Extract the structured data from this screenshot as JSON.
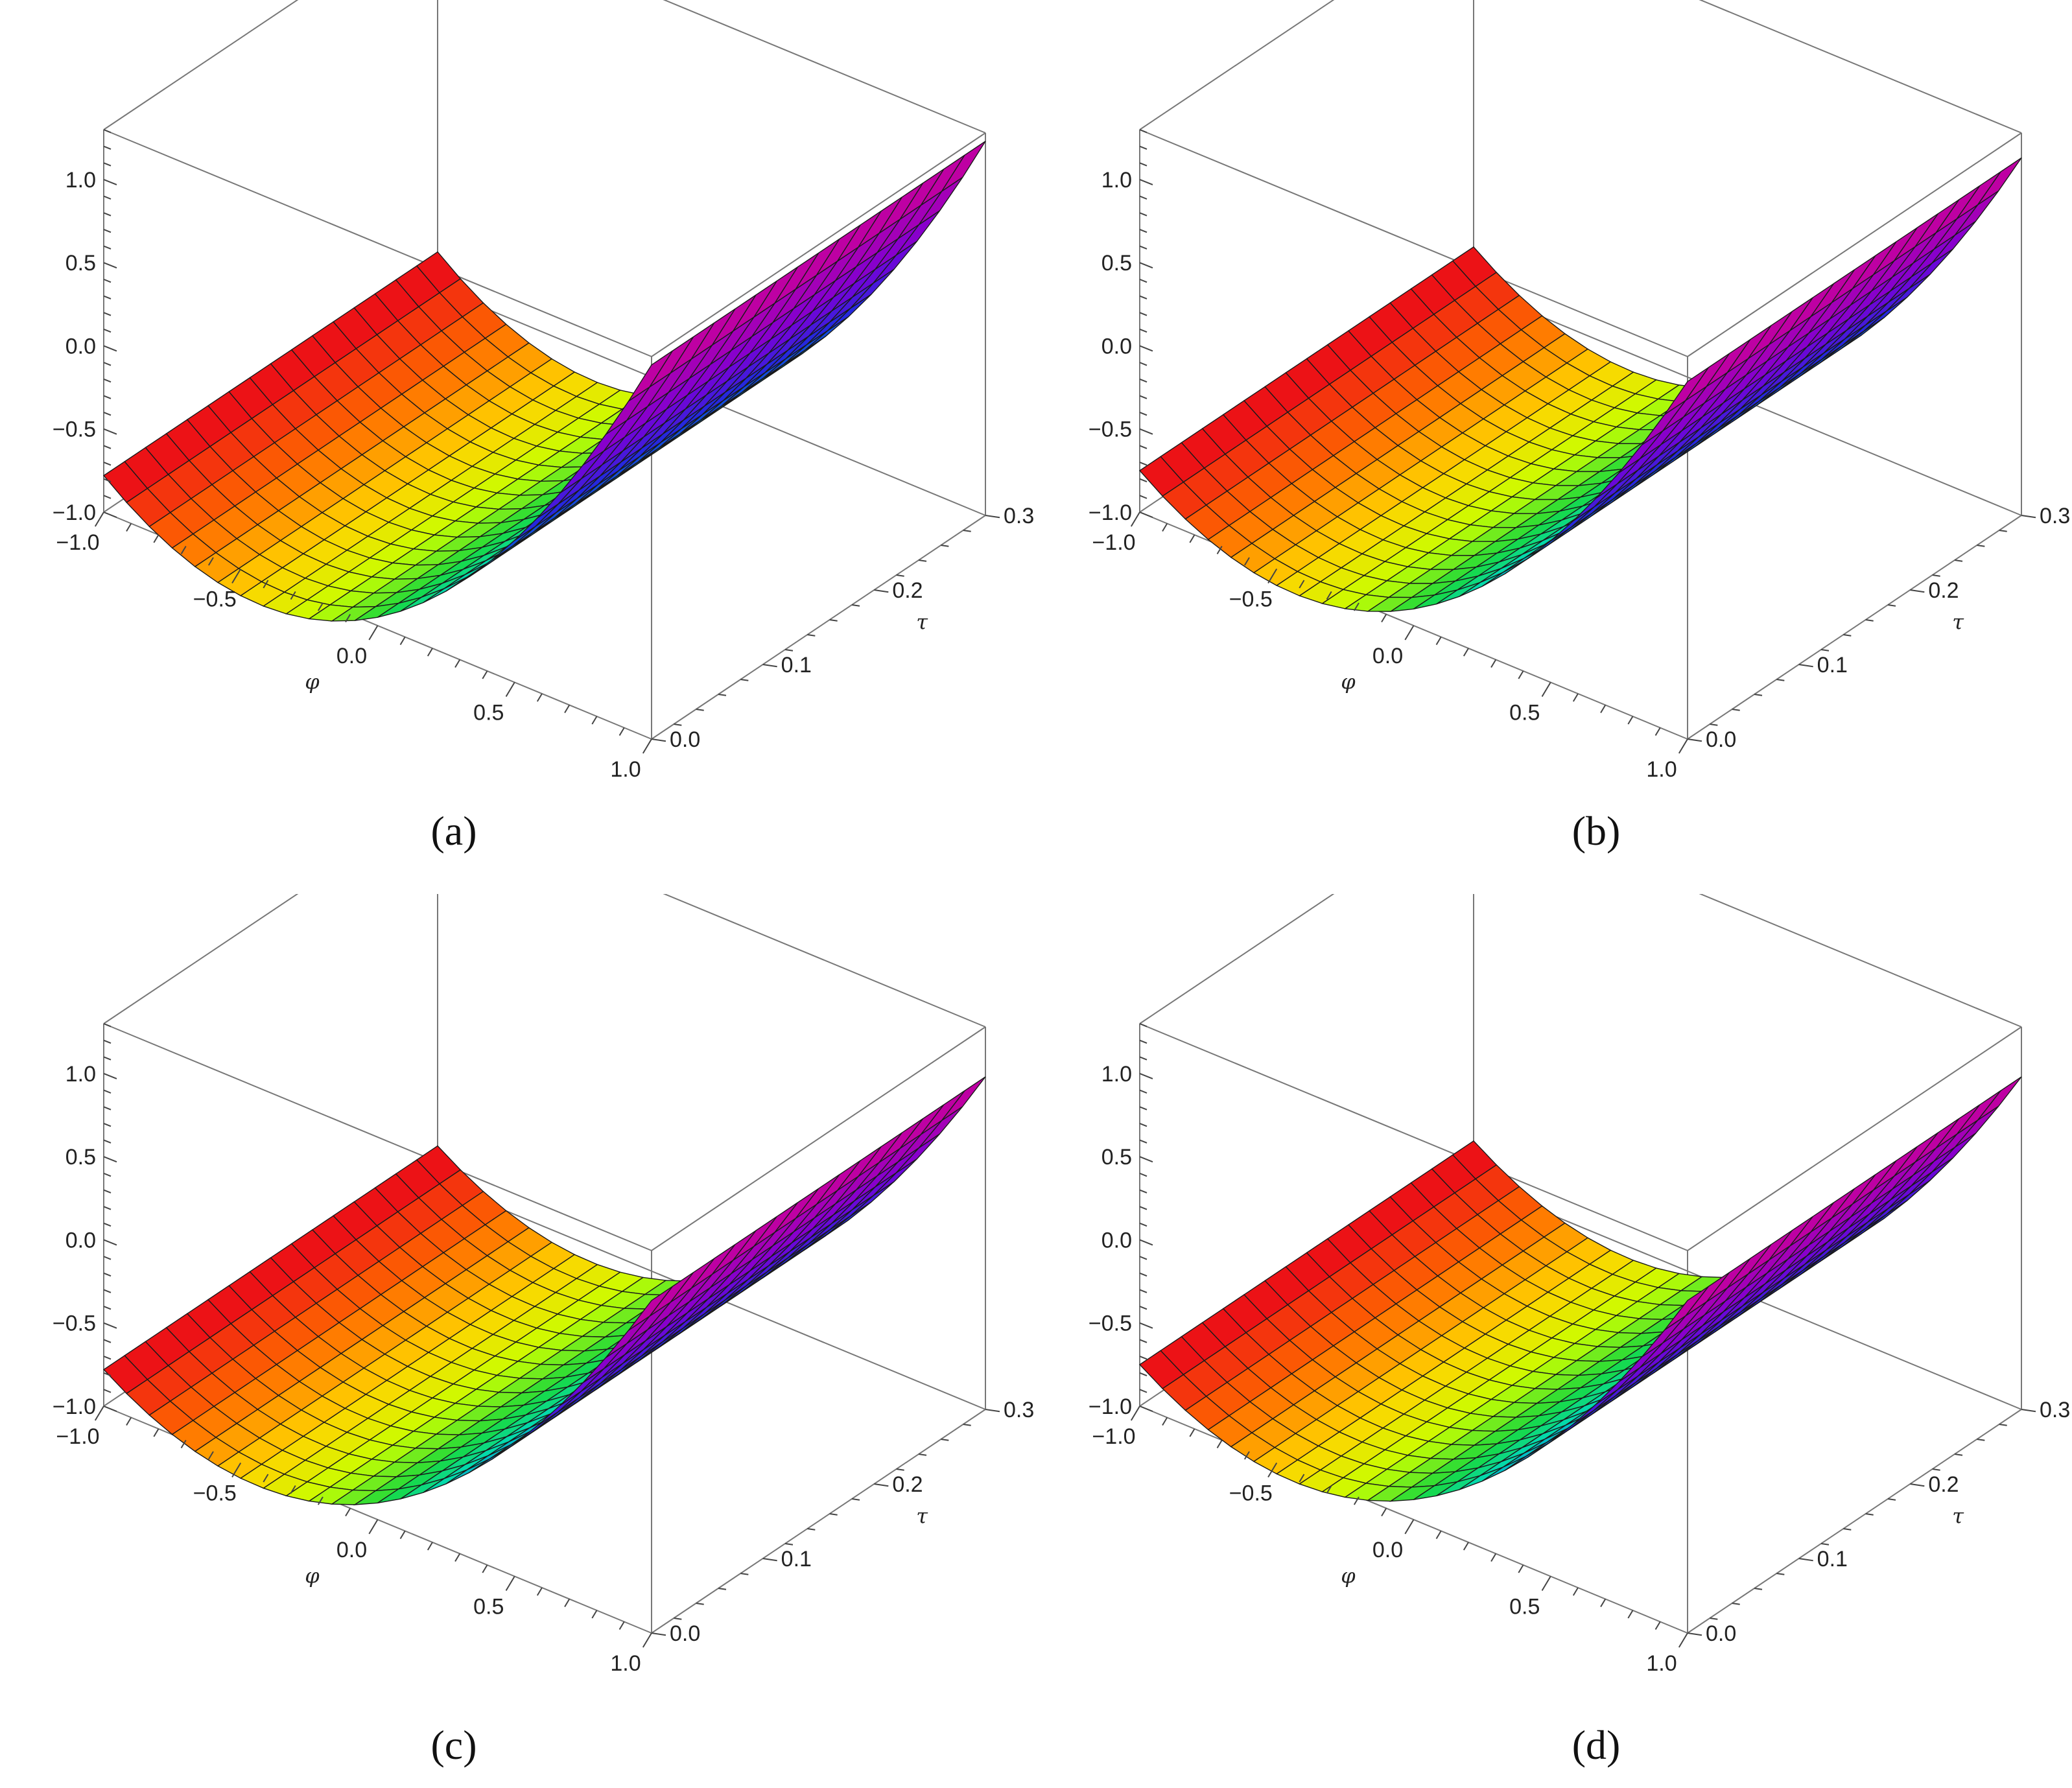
{
  "chart_data": [
    {
      "type": "surface3d",
      "caption": "(a)",
      "x_axis": {
        "label": "φ",
        "range": [
          -1.0,
          1.0
        ],
        "tick_labels": [
          "-1.0",
          "-0.5",
          "0.0",
          "0.5",
          "1.0"
        ]
      },
      "y_axis": {
        "label": "τ",
        "range": [
          0.0,
          0.3
        ],
        "tick_labels": [
          "0.0",
          "0.1",
          "0.2",
          "0.3"
        ]
      },
      "z_axis": {
        "range": [
          -1.0,
          1.3
        ],
        "tick_labels": [
          "-1.0",
          "-0.5",
          "0.0",
          "0.5",
          "1.0"
        ]
      },
      "surface": {
        "z_at_phi_minus1": -0.78,
        "z_at_phi_0": -0.95,
        "z_at_phi_1": 1.25,
        "tau_slope": 0.0
      },
      "colormap": [
        "#e8001a",
        "#ff6a00",
        "#ffd400",
        "#c8ff00",
        "#19d93b",
        "#00d9c0",
        "#1530e0",
        "#7a00d6",
        "#cc0099"
      ]
    },
    {
      "type": "surface3d",
      "caption": "(b)",
      "x_axis": {
        "label": "φ",
        "range": [
          -1.0,
          1.0
        ],
        "tick_labels": [
          "-1.0",
          "-0.5",
          "0.0",
          "0.5",
          "1.0"
        ]
      },
      "y_axis": {
        "label": "τ",
        "range": [
          0.0,
          0.3
        ],
        "tick_labels": [
          "0.0",
          "0.1",
          "0.2",
          "0.3"
        ]
      },
      "z_axis": {
        "range": [
          -1.0,
          1.3
        ],
        "tick_labels": [
          "-1.0",
          "-0.5",
          "0.0",
          "0.5",
          "1.0"
        ]
      },
      "surface": {
        "z_at_phi_minus1": -0.75,
        "z_at_phi_0": -0.9,
        "z_at_phi_1": 1.15,
        "tau_slope": 0.0
      },
      "colormap": [
        "#e8001a",
        "#ff6a00",
        "#ffd400",
        "#c8ff00",
        "#19d93b",
        "#00d9c0",
        "#1530e0",
        "#7a00d6",
        "#cc0099"
      ]
    },
    {
      "type": "surface3d",
      "caption": "(c)",
      "x_axis": {
        "label": "φ",
        "range": [
          -1.0,
          1.0
        ],
        "tick_labels": [
          "-1.0",
          "-0.5",
          "0.0",
          "0.5",
          "1.0"
        ]
      },
      "y_axis": {
        "label": "τ",
        "range": [
          0.0,
          0.3
        ],
        "tick_labels": [
          "0.0",
          "0.1",
          "0.2",
          "0.3"
        ]
      },
      "z_axis": {
        "range": [
          -1.0,
          1.3
        ],
        "tick_labels": [
          "-1.0",
          "-0.5",
          "0.0",
          "0.5",
          "1.0"
        ]
      },
      "surface": {
        "z_at_phi_minus1": -0.78,
        "z_at_phi_0": -0.9,
        "z_at_phi_1": 1.0,
        "tau_slope": 0.0
      },
      "colormap": [
        "#e8001a",
        "#ff6a00",
        "#ffd400",
        "#c8ff00",
        "#19d93b",
        "#00d9c0",
        "#1530e0",
        "#7a00d6",
        "#cc0099"
      ]
    },
    {
      "type": "surface3d",
      "caption": "(d)",
      "x_axis": {
        "label": "φ",
        "range": [
          -1.0,
          1.0
        ],
        "tick_labels": [
          "-1.0",
          "-0.5",
          "0.0",
          "0.5",
          "1.0"
        ]
      },
      "y_axis": {
        "label": "τ",
        "range": [
          0.0,
          0.3
        ],
        "tick_labels": [
          "0.0",
          "0.1",
          "0.2",
          "0.3"
        ]
      },
      "z_axis": {
        "range": [
          -1.0,
          1.3
        ],
        "tick_labels": [
          "-1.0",
          "-0.5",
          "0.0",
          "0.5",
          "1.0"
        ]
      },
      "surface": {
        "z_at_phi_minus1": -0.75,
        "z_at_phi_0": -0.88,
        "z_at_phi_1": 1.0,
        "tau_slope": 0.0
      },
      "colormap": [
        "#e8001a",
        "#ff6a00",
        "#ffd400",
        "#c8ff00",
        "#19d93b",
        "#00d9c0",
        "#1530e0",
        "#7a00d6",
        "#cc0099"
      ]
    }
  ]
}
